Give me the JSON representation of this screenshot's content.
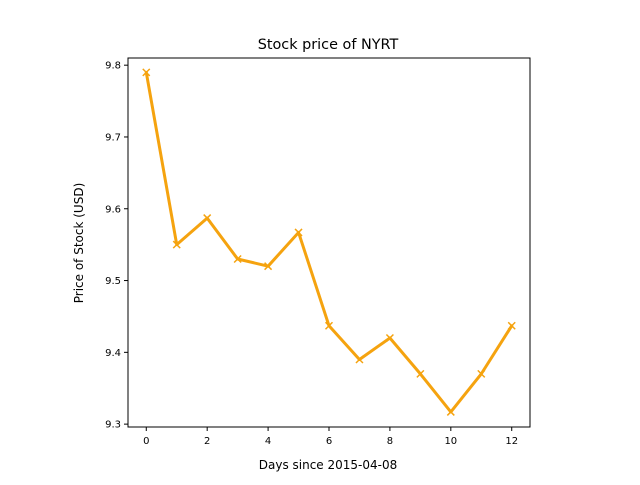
{
  "chart_data": {
    "type": "line",
    "title": "Stock price of NYRT",
    "xlabel": "Days since 2015-04-08",
    "ylabel": "Price of Stock (USD)",
    "xlim": [
      -0.6,
      12.6
    ],
    "ylim": [
      9.296,
      9.81
    ],
    "x_ticks": [
      0,
      2,
      4,
      6,
      8,
      10,
      12
    ],
    "y_ticks": [
      9.3,
      9.4,
      9.5,
      9.6,
      9.7,
      9.8
    ],
    "y_tick_labels": [
      "9.3",
      "9.4",
      "9.5",
      "9.6",
      "9.7",
      "9.8"
    ],
    "grid": false,
    "series": [
      {
        "color": "#f5a30f",
        "marker": "x",
        "x": [
          0,
          1,
          2,
          3,
          4,
          5,
          6,
          7,
          8,
          9,
          10,
          11,
          12
        ],
        "values": [
          9.79,
          9.55,
          9.587,
          9.53,
          9.52,
          9.567,
          9.437,
          9.39,
          9.42,
          9.37,
          9.317,
          9.37,
          9.437
        ]
      }
    ]
  }
}
